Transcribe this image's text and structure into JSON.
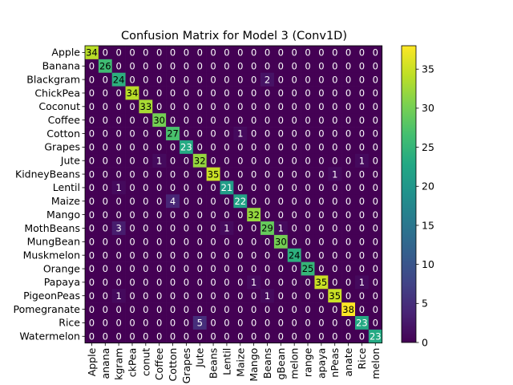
{
  "chart_data": {
    "type": "heatmap",
    "title": "Confusion Matrix for Model 3 (Conv1D)",
    "xlabel": "",
    "ylabel": "",
    "row_labels": [
      "Apple",
      "Banana",
      "Blackgram",
      "ChickPea",
      "Coconut",
      "Coffee",
      "Cotton",
      "Grapes",
      "Jute",
      "KidneyBeans",
      "Lentil",
      "Maize",
      "Mango",
      "MothBeans",
      "MungBean",
      "Muskmelon",
      "Orange",
      "Papaya",
      "PigeonPeas",
      "Pomegranate",
      "Rice",
      "Watermelon"
    ],
    "col_labels_visible": [
      "Apple",
      "anana",
      "kgram",
      "ckPea",
      "conut",
      "Coffee",
      "Cotton",
      "Grapes",
      "Jute",
      "Beans",
      "Lentil",
      "Maize",
      "Mango",
      "Beans",
      "gBean",
      "melon",
      "range",
      "apaya",
      "nPeas",
      "anate",
      "Rice",
      "melon"
    ],
    "matrix": [
      [
        34,
        0,
        0,
        0,
        0,
        0,
        0,
        0,
        0,
        0,
        0,
        0,
        0,
        0,
        0,
        0,
        0,
        0,
        0,
        0,
        0,
        0
      ],
      [
        0,
        26,
        0,
        0,
        0,
        0,
        0,
        0,
        0,
        0,
        0,
        0,
        0,
        0,
        0,
        0,
        0,
        0,
        0,
        0,
        0,
        0
      ],
      [
        0,
        0,
        24,
        0,
        0,
        0,
        0,
        0,
        0,
        0,
        0,
        0,
        0,
        2,
        0,
        0,
        0,
        0,
        0,
        0,
        0,
        0
      ],
      [
        0,
        0,
        0,
        34,
        0,
        0,
        0,
        0,
        0,
        0,
        0,
        0,
        0,
        0,
        0,
        0,
        0,
        0,
        0,
        0,
        0,
        0
      ],
      [
        0,
        0,
        0,
        0,
        33,
        0,
        0,
        0,
        0,
        0,
        0,
        0,
        0,
        0,
        0,
        0,
        0,
        0,
        0,
        0,
        0,
        0
      ],
      [
        0,
        0,
        0,
        0,
        0,
        30,
        0,
        0,
        0,
        0,
        0,
        0,
        0,
        0,
        0,
        0,
        0,
        0,
        0,
        0,
        0,
        0
      ],
      [
        0,
        0,
        0,
        0,
        0,
        0,
        27,
        0,
        0,
        0,
        0,
        1,
        0,
        0,
        0,
        0,
        0,
        0,
        0,
        0,
        0,
        0
      ],
      [
        0,
        0,
        0,
        0,
        0,
        0,
        0,
        23,
        0,
        0,
        0,
        0,
        0,
        0,
        0,
        0,
        0,
        0,
        0,
        0,
        0,
        0
      ],
      [
        0,
        0,
        0,
        0,
        0,
        1,
        0,
        0,
        32,
        0,
        0,
        0,
        0,
        0,
        0,
        0,
        0,
        0,
        0,
        0,
        1,
        0
      ],
      [
        0,
        0,
        0,
        0,
        0,
        0,
        0,
        0,
        0,
        35,
        0,
        0,
        0,
        0,
        0,
        0,
        0,
        0,
        1,
        0,
        0,
        0
      ],
      [
        0,
        0,
        1,
        0,
        0,
        0,
        0,
        0,
        0,
        0,
        21,
        0,
        0,
        0,
        0,
        0,
        0,
        0,
        0,
        0,
        0,
        0
      ],
      [
        0,
        0,
        0,
        0,
        0,
        0,
        4,
        0,
        0,
        0,
        0,
        22,
        0,
        0,
        0,
        0,
        0,
        0,
        0,
        0,
        0,
        0
      ],
      [
        0,
        0,
        0,
        0,
        0,
        0,
        0,
        0,
        0,
        0,
        0,
        0,
        32,
        0,
        0,
        0,
        0,
        0,
        0,
        0,
        0,
        0
      ],
      [
        0,
        0,
        3,
        0,
        0,
        0,
        0,
        0,
        0,
        0,
        1,
        0,
        0,
        29,
        1,
        0,
        0,
        0,
        0,
        0,
        0,
        0
      ],
      [
        0,
        0,
        0,
        0,
        0,
        0,
        0,
        0,
        0,
        0,
        0,
        0,
        0,
        0,
        30,
        0,
        0,
        0,
        0,
        0,
        0,
        0
      ],
      [
        0,
        0,
        0,
        0,
        0,
        0,
        0,
        0,
        0,
        0,
        0,
        0,
        0,
        0,
        0,
        24,
        0,
        0,
        0,
        0,
        0,
        0
      ],
      [
        0,
        0,
        0,
        0,
        0,
        0,
        0,
        0,
        0,
        0,
        0,
        0,
        0,
        0,
        0,
        0,
        25,
        0,
        0,
        0,
        0,
        0
      ],
      [
        0,
        0,
        0,
        0,
        0,
        0,
        0,
        0,
        0,
        0,
        0,
        0,
        1,
        0,
        0,
        0,
        0,
        35,
        0,
        0,
        1,
        0
      ],
      [
        0,
        0,
        1,
        0,
        0,
        0,
        0,
        0,
        0,
        0,
        0,
        0,
        0,
        1,
        0,
        0,
        0,
        0,
        35,
        0,
        0,
        0
      ],
      [
        0,
        0,
        0,
        0,
        0,
        0,
        0,
        0,
        0,
        0,
        0,
        0,
        0,
        0,
        0,
        0,
        0,
        0,
        0,
        38,
        0,
        0
      ],
      [
        0,
        0,
        0,
        0,
        0,
        0,
        0,
        0,
        5,
        0,
        0,
        0,
        0,
        0,
        0,
        0,
        0,
        0,
        0,
        0,
        23,
        0
      ],
      [
        0,
        0,
        0,
        0,
        0,
        0,
        0,
        0,
        0,
        0,
        0,
        0,
        0,
        0,
        0,
        0,
        0,
        0,
        0,
        0,
        0,
        23
      ]
    ],
    "colormap": "viridis",
    "color_range": [
      0,
      38
    ],
    "colorbar_ticks": [
      0,
      5,
      10,
      15,
      20,
      25,
      30,
      35
    ]
  }
}
